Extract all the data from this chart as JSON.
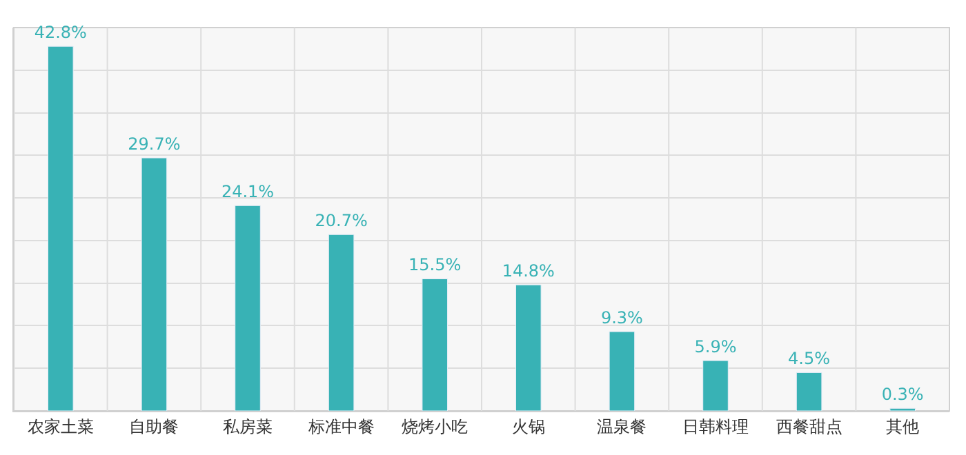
{
  "chart_data": {
    "type": "bar",
    "categories": [
      "农家土菜",
      "自助餐",
      "私房菜",
      "标准中餐",
      "烧烤小吃",
      "火锅",
      "温泉餐",
      "日韩料理",
      "西餐甜点",
      "其他"
    ],
    "values": [
      42.8,
      29.7,
      24.1,
      20.7,
      15.5,
      14.8,
      9.3,
      5.9,
      4.5,
      0.3
    ],
    "value_labels": [
      "42.8%",
      "29.7%",
      "24.1%",
      "20.7%",
      "15.5%",
      "14.8%",
      "9.3%",
      "5.9%",
      "4.5%",
      "0.3%"
    ],
    "color": "#38b2b5",
    "ylim": [
      0,
      45
    ],
    "yticks": [
      {
        "value": 0,
        "label": null
      },
      {
        "value": 5,
        "label": null
      },
      {
        "value": 10,
        "label": null
      },
      {
        "value": 15,
        "label": null
      },
      {
        "value": 20,
        "label": null
      },
      {
        "value": 25,
        "label": null
      },
      {
        "value": 30,
        "label": null
      },
      {
        "value": 35,
        "label": null
      },
      {
        "value": 40,
        "label": null
      },
      {
        "value": 45,
        "label": null
      }
    ],
    "tick_labels": "x",
    "grid": true,
    "legend": false
  }
}
